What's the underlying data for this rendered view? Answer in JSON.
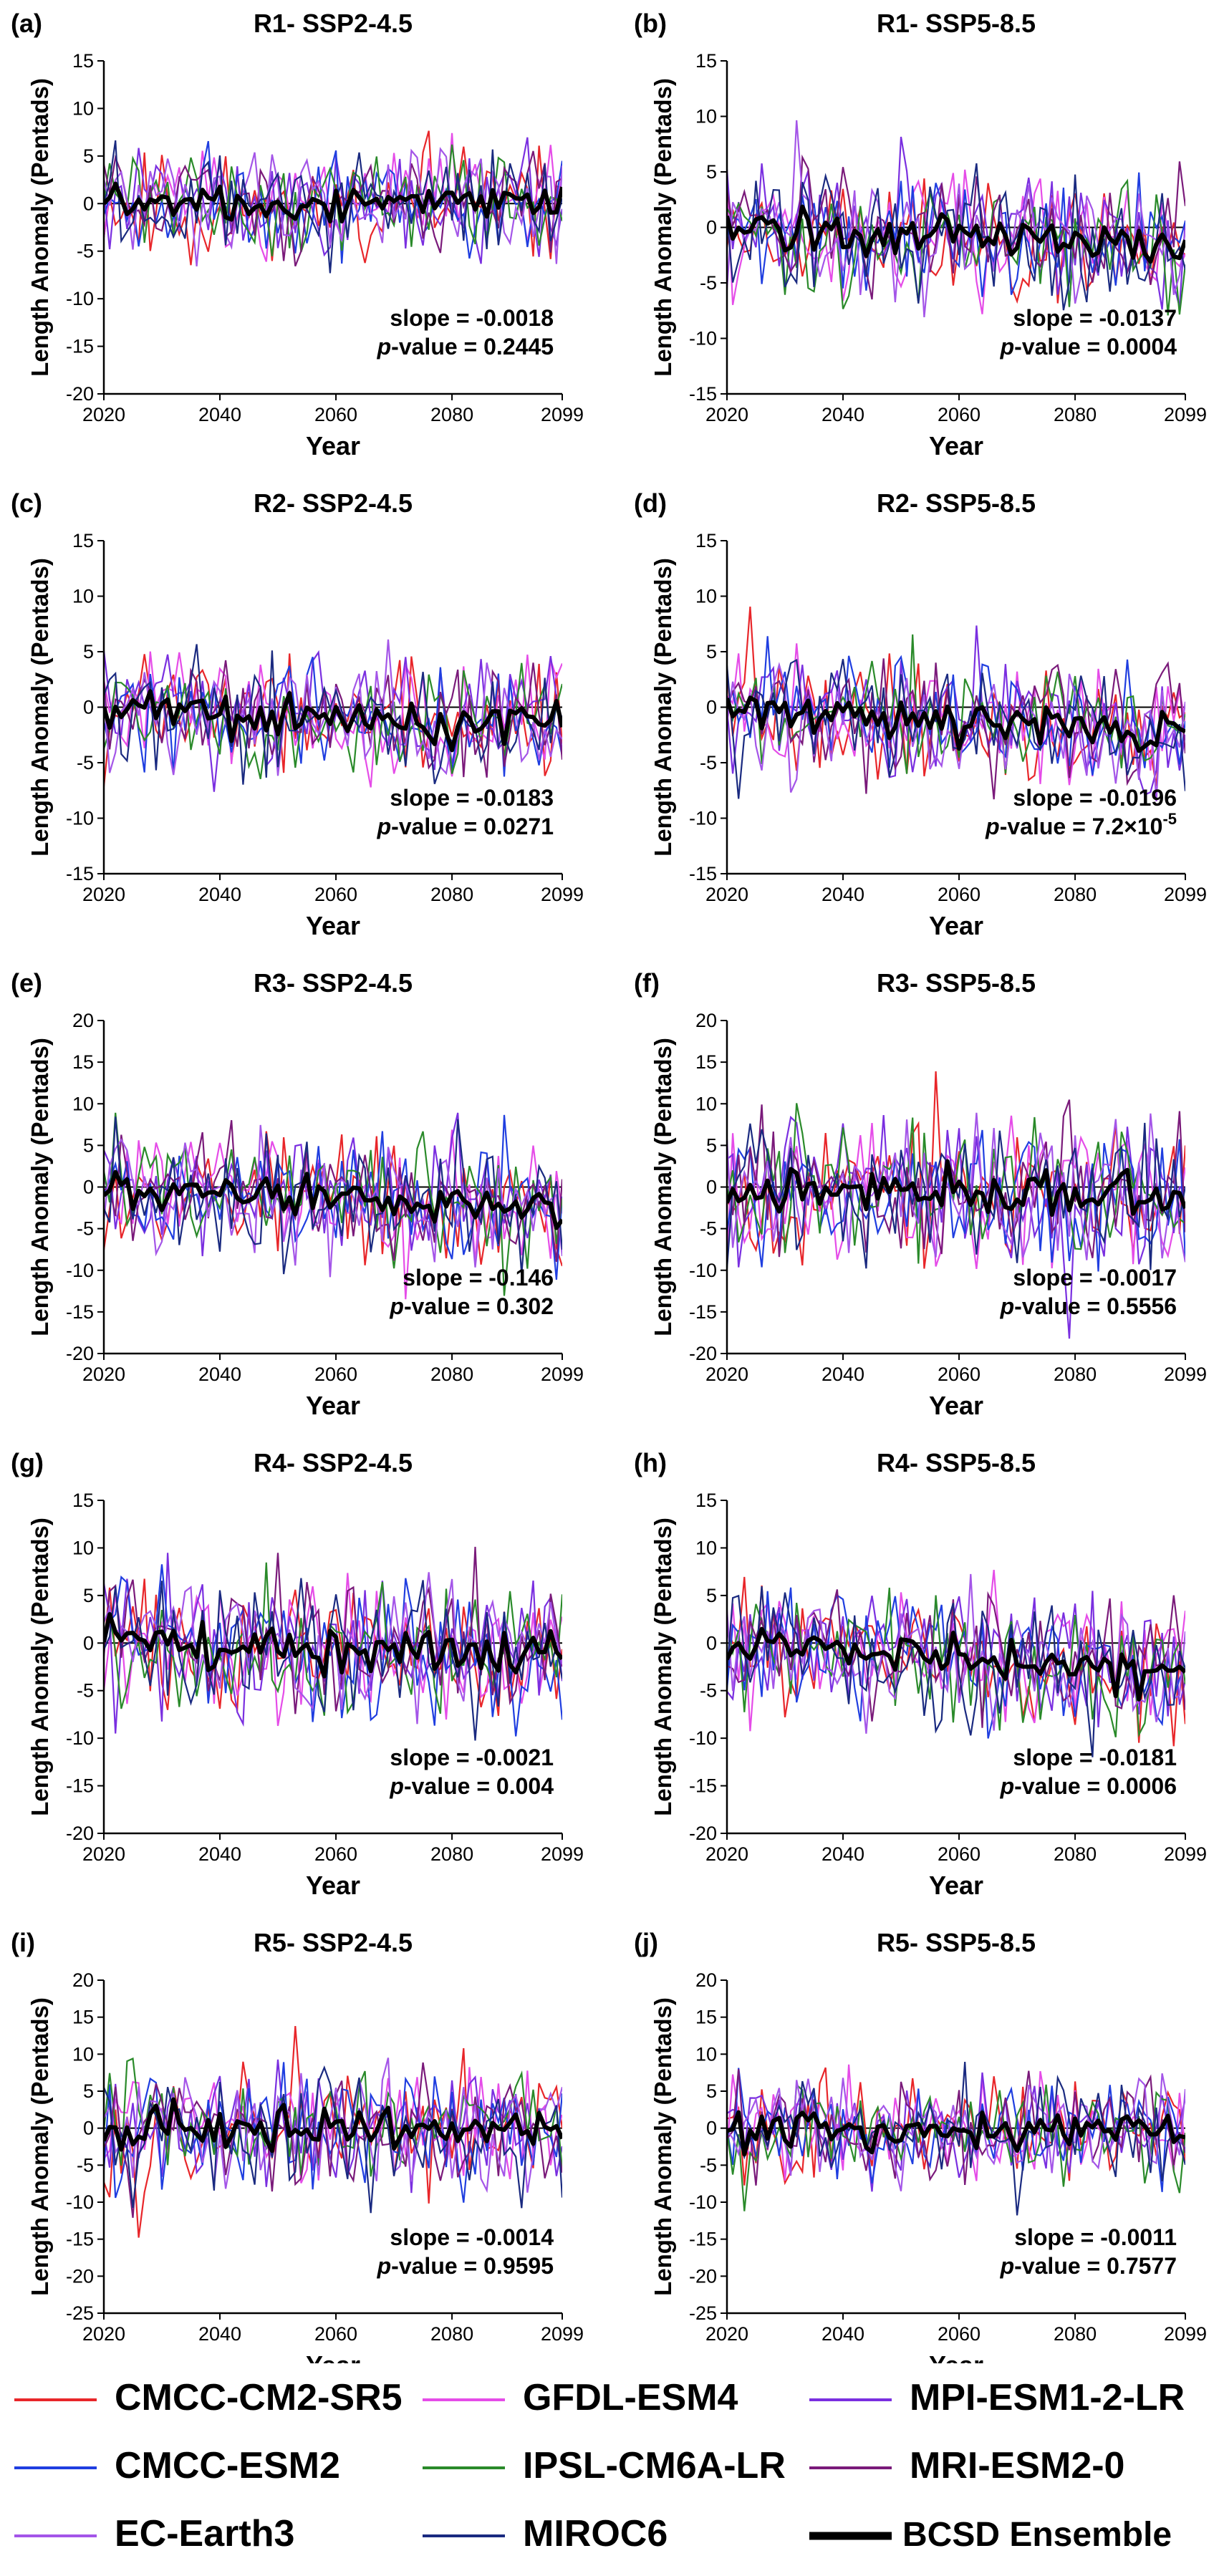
{
  "figure": {
    "x_axis_label": "Year",
    "y_axis_label": "Length Anomaly (Pentads)",
    "x_ticks": [
      2020,
      2040,
      2060,
      2080,
      2099
    ],
    "slope_prefix": "slope = ",
    "p_letter": "p",
    "p_suffix": "-value = "
  },
  "legend": {
    "items": [
      {
        "name": "CMCC-CM2-SR5",
        "color": "#e8262a"
      },
      {
        "name": "GFDL-ESM4",
        "color": "#e54ce8"
      },
      {
        "name": "MPI-ESM1-2-LR",
        "color": "#7a2fe0"
      },
      {
        "name": "CMCC-ESM2",
        "color": "#1f3ee0"
      },
      {
        "name": "IPSL-CM6A-LR",
        "color": "#2a8a2a"
      },
      {
        "name": "MRI-ESM2-0",
        "color": "#7a1a7a"
      },
      {
        "name": "EC-Earth3",
        "color": "#a455e8"
      },
      {
        "name": "MIROC6",
        "color": "#1a2a80"
      },
      {
        "name": "BCSD Ensemble",
        "color": "#000000"
      }
    ]
  },
  "chart_data": [
    {
      "type": "line",
      "letter": "(a)",
      "title": "R1- SSP2-4.5",
      "xlim": [
        2020,
        2099
      ],
      "ylim": [
        -20,
        15
      ],
      "yticks": [
        -20,
        -15,
        -10,
        -5,
        0,
        5,
        10,
        15
      ],
      "slope": "-0.0018",
      "pvalue": "0.2445",
      "spread": 2.8,
      "trend_end": -0.1,
      "seed": 11
    },
    {
      "type": "line",
      "letter": "(b)",
      "title": "R1- SSP5-8.5",
      "xlim": [
        2020,
        2099
      ],
      "ylim": [
        -15,
        15
      ],
      "yticks": [
        -15,
        -10,
        -5,
        0,
        5,
        10,
        15
      ],
      "slope": "-0.0137",
      "pvalue": "0.0004",
      "spread": 2.8,
      "trend_end": -1.6,
      "seed": 23
    },
    {
      "type": "line",
      "letter": "(c)",
      "title": "R2- SSP2-4.5",
      "xlim": [
        2020,
        2099
      ],
      "ylim": [
        -15,
        15
      ],
      "yticks": [
        -15,
        -10,
        -5,
        0,
        5,
        10,
        15
      ],
      "slope": "-0.0183",
      "pvalue": "0.0271",
      "spread": 2.6,
      "trend_end": -1.6,
      "seed": 37
    },
    {
      "type": "line",
      "letter": "(d)",
      "title": "R2- SSP5-8.5",
      "xlim": [
        2020,
        2099
      ],
      "ylim": [
        -15,
        15
      ],
      "yticks": [
        -15,
        -10,
        -5,
        0,
        5,
        10,
        15
      ],
      "slope": "-0.0196",
      "pvalue": "7.2×10",
      "pvalue_exp": "-5",
      "spread": 2.6,
      "trend_end": -2.5,
      "seed": 41
    },
    {
      "type": "line",
      "letter": "(e)",
      "title": "R3- SSP2-4.5",
      "xlim": [
        2020,
        2099
      ],
      "ylim": [
        -20,
        20
      ],
      "yticks": [
        -20,
        -15,
        -10,
        -5,
        0,
        5,
        10,
        15,
        20
      ],
      "slope": "-0.146",
      "pvalue": "0.302",
      "spread": 3.6,
      "trend_end": -2.5,
      "seed": 53
    },
    {
      "type": "line",
      "letter": "(f)",
      "title": "R3- SSP5-8.5",
      "xlim": [
        2020,
        2099
      ],
      "ylim": [
        -20,
        20
      ],
      "yticks": [
        -20,
        -15,
        -10,
        -5,
        0,
        5,
        10,
        15,
        20
      ],
      "slope": "-0.0017",
      "pvalue": "0.5556",
      "spread": 4.2,
      "trend_end": -1.0,
      "seed": 67
    },
    {
      "type": "line",
      "letter": "(g)",
      "title": "R4- SSP2-4.5",
      "xlim": [
        2020,
        2099
      ],
      "ylim": [
        -20,
        15
      ],
      "yticks": [
        -20,
        -15,
        -10,
        -5,
        0,
        5,
        10,
        15
      ],
      "slope": "-0.0021",
      "pvalue": "0.004",
      "spread": 3.4,
      "trend_end": -1.3,
      "seed": 71
    },
    {
      "type": "line",
      "letter": "(h)",
      "title": "R4- SSP5-8.5",
      "xlim": [
        2020,
        2099
      ],
      "ylim": [
        -20,
        15
      ],
      "yticks": [
        -20,
        -15,
        -10,
        -5,
        0,
        5,
        10,
        15
      ],
      "slope": "-0.0181",
      "pvalue": "0.0006",
      "spread": 3.4,
      "trend_end": -2.8,
      "seed": 83
    },
    {
      "type": "line",
      "letter": "(i)",
      "title": "R5- SSP2-4.5",
      "xlim": [
        2020,
        2099
      ],
      "ylim": [
        -25,
        20
      ],
      "yticks": [
        -25,
        -20,
        -15,
        -10,
        -5,
        0,
        5,
        10,
        15,
        20
      ],
      "slope": "-0.0014",
      "pvalue": "0.9595",
      "spread": 4.0,
      "trend_end": -0.6,
      "seed": 97
    },
    {
      "type": "line",
      "letter": "(j)",
      "title": "R5- SSP5-8.5",
      "xlim": [
        2020,
        2099
      ],
      "ylim": [
        -25,
        20
      ],
      "yticks": [
        -25,
        -20,
        -15,
        -10,
        -5,
        0,
        5,
        10,
        15,
        20
      ],
      "slope": "-0.0011",
      "pvalue": "0.7577",
      "spread": 3.4,
      "trend_end": -0.2,
      "seed": 101
    }
  ]
}
